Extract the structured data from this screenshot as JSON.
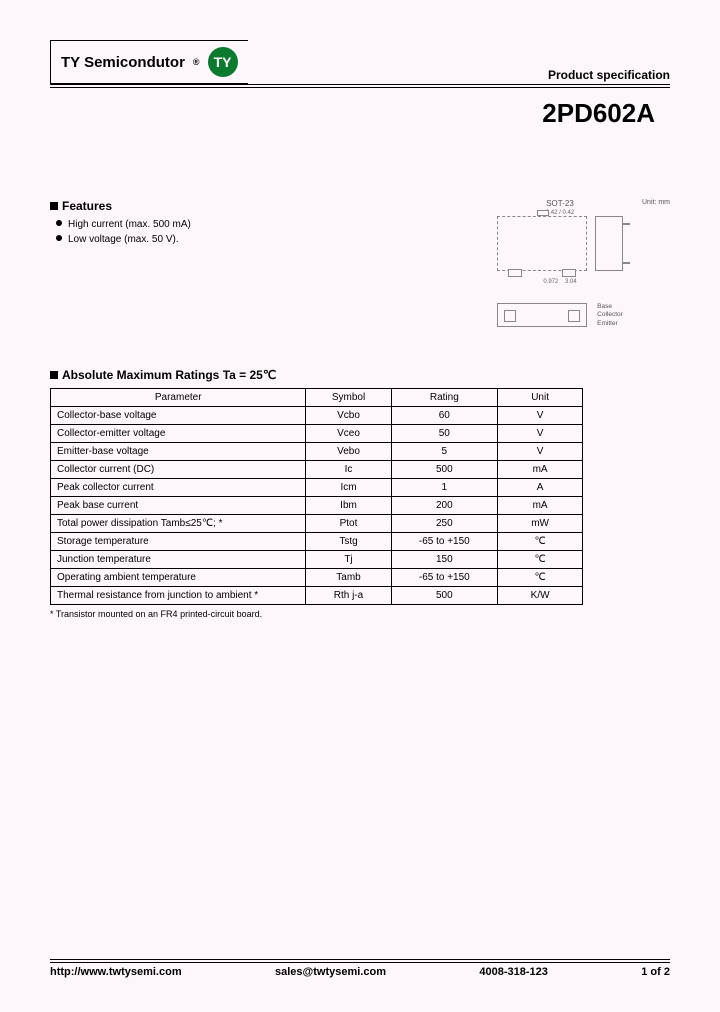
{
  "header": {
    "brand": "TY Semicondutor",
    "logo_text": "TY",
    "logo_bg": "#0a7a2f",
    "spec_label": "Product specification",
    "part_number": "2PD602A"
  },
  "features": {
    "title": "Features",
    "items": [
      "High current (max. 500 mA)",
      "Low voltage (max. 50 V)."
    ]
  },
  "package": {
    "name": "SOT-23",
    "unit_label": "Unit: mm",
    "dims": {
      "top_w": "2.42",
      "top_lead": "0.42",
      "body_h": "1.4",
      "pitch": "0.972",
      "width": "3.04"
    },
    "pins": [
      "Base",
      "Collector",
      "Emitter"
    ]
  },
  "ratings": {
    "title": "Absolute Maximum Ratings Ta = 25℃",
    "columns": [
      "Parameter",
      "Symbol",
      "Rating",
      "Unit"
    ],
    "rows": [
      [
        "Collector-base voltage",
        "Vcbo",
        "60",
        "V"
      ],
      [
        "Collector-emitter voltage",
        "Vceo",
        "50",
        "V"
      ],
      [
        "Emitter-base voltage",
        "Vebo",
        "5",
        "V"
      ],
      [
        "Collector current (DC)",
        "Ic",
        "500",
        "mA"
      ],
      [
        "Peak collector current",
        "Icm",
        "1",
        "A"
      ],
      [
        "Peak base current",
        "Ibm",
        "200",
        "mA"
      ],
      [
        "Total power dissipation Tamb≤25℃; *",
        "Ptot",
        "250",
        "mW"
      ],
      [
        "Storage temperature",
        "Tstg",
        "-65 to +150",
        "℃"
      ],
      [
        "Junction temperature",
        "Tj",
        "150",
        "℃"
      ],
      [
        "Operating ambient temperature",
        "Tamb",
        "-65 to +150",
        "℃"
      ],
      [
        "Thermal resistance from junction to ambient *",
        "Rth j-a",
        "500",
        "K/W"
      ]
    ],
    "footnote": "* Transistor mounted on an FR4 printed-circuit board."
  },
  "footer": {
    "url": "http://www.twtysemi.com",
    "email": "sales@twtysemi.com",
    "phone": "4008-318-123",
    "page": "1 of 2"
  }
}
